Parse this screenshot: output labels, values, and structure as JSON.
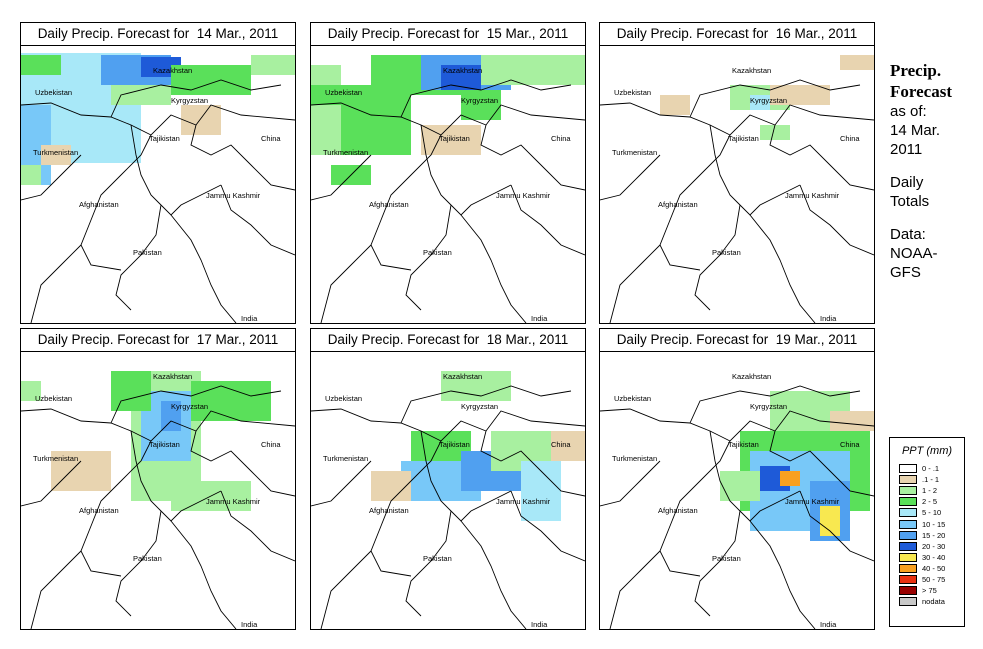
{
  "panels": [
    {
      "title": "Daily Precip. Forecast for  14 Mar., 2011"
    },
    {
      "title": "Daily Precip. Forecast for  15 Mar., 2011"
    },
    {
      "title": "Daily Precip. Forecast for  16 Mar., 2011"
    },
    {
      "title": "Daily Precip. Forecast for  17 Mar., 2011"
    },
    {
      "title": "Daily Precip. Forecast for  18 Mar., 2011"
    },
    {
      "title": "Daily Precip. Forecast for  19 Mar., 2011"
    }
  ],
  "map_labels": {
    "kazakhstan": "Kazakhstan",
    "uzbekistan": "Uzbekistan",
    "kyrgyzstan": "Kyrgyzstan",
    "tajikistan": "Tajikistan",
    "china": "China",
    "turkmenistan": "Turkmenistan",
    "jammu_kashmir": "Jammu Kashmir",
    "afghanistan": "Afghanistan",
    "pakistan": "Pakistan",
    "india": "India"
  },
  "side": {
    "title_line1": "Precip.",
    "title_line2": "Forecast",
    "asof_line1": "as of:",
    "asof_line2": "14 Mar.",
    "asof_line3": "2011",
    "totals_line1": "Daily",
    "totals_line2": "Totals",
    "data_line1": "Data:",
    "data_line2": "NOAA-",
    "data_line3": "GFS"
  },
  "legend": {
    "title": "PPT (mm)",
    "items": [
      {
        "label": "0 - .1",
        "color": "#ffffff"
      },
      {
        "label": ".1 - 1",
        "color": "#e8d4b0"
      },
      {
        "label": "1 - 2",
        "color": "#a8f0a0"
      },
      {
        "label": "2 - 5",
        "color": "#5ae05a"
      },
      {
        "label": "5 - 10",
        "color": "#a8e8f8"
      },
      {
        "label": "10 - 15",
        "color": "#78c8f8"
      },
      {
        "label": "15 - 20",
        "color": "#50a0f0"
      },
      {
        "label": "20 - 30",
        "color": "#1e5ad8"
      },
      {
        "label": "30 - 40",
        "color": "#f8e850"
      },
      {
        "label": "40 - 50",
        "color": "#f8a020"
      },
      {
        "label": "50 - 75",
        "color": "#e83010"
      },
      {
        "label": "> 75",
        "color": "#980000"
      },
      {
        "label": "nodata",
        "color": "#c8c8c8"
      }
    ]
  }
}
